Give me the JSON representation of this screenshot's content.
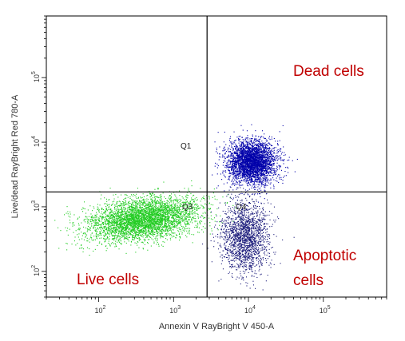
{
  "chart_data": {
    "type": "scatter",
    "title": "",
    "xlabel": "Annexin V RayBright V 450-A",
    "ylabel": "Live/dead RayBright Red 780-A",
    "x_scale": "log",
    "y_scale": "log",
    "xlim": [
      20,
      700000
    ],
    "ylim": [
      40,
      900000
    ],
    "x_ticks": [
      {
        "value": 100,
        "base": "10",
        "exp": "2"
      },
      {
        "value": 1000,
        "base": "10",
        "exp": "3"
      },
      {
        "value": 10000,
        "base": "10",
        "exp": "4"
      },
      {
        "value": 100000,
        "base": "10",
        "exp": "5"
      }
    ],
    "y_ticks": [
      {
        "value": 100,
        "base": "10",
        "exp": "2"
      },
      {
        "value": 1000,
        "base": "10",
        "exp": "3"
      },
      {
        "value": 10000,
        "base": "10",
        "exp": "4"
      },
      {
        "value": 100000,
        "base": "10",
        "exp": "5"
      }
    ],
    "gates": {
      "x_threshold": 2800,
      "y_threshold": 1700
    },
    "quadrant_labels": {
      "q1": "Q1",
      "q3": "Q3",
      "q4": "Q4"
    },
    "populations": [
      {
        "label": "Live cells",
        "color": "#22cc22",
        "center_x": 400,
        "center_y": 650,
        "count": 4200
      },
      {
        "label": "Dead cells",
        "color": "#0000aa",
        "center_x": 11000,
        "center_y": 5000,
        "count": 3400
      },
      {
        "label": "Apoptotic cells",
        "color": "#1a1a7a",
        "center_x": 9000,
        "center_y": 350,
        "count": 1800
      }
    ],
    "annotations": {
      "dead": "Dead cells",
      "apoptotic_line1": "Apoptotic",
      "apoptotic_line2": "cells",
      "live": "Live cells"
    },
    "grid": false
  }
}
